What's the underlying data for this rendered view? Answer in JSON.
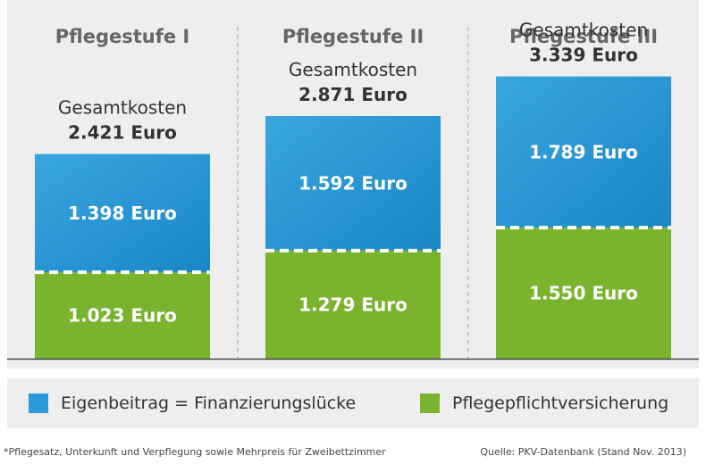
{
  "chart_data": {
    "type": "bar",
    "stacked": true,
    "categories": [
      "Pflegestufe I",
      "Pflegestufe II",
      "Pflegestufe III"
    ],
    "series": [
      {
        "name": "Pflegepflichtversicherung",
        "values": [
          1023,
          1279,
          1550
        ],
        "labels": [
          "1.023 Euro",
          "1.279 Euro",
          "1.550 Euro"
        ],
        "color": "#7ab32e"
      },
      {
        "name": "Eigenbeitrag = Finanzierungslücke",
        "values": [
          1398,
          1592,
          1789
        ],
        "labels": [
          "1.398 Euro",
          "1.592 Euro",
          "1.789 Euro"
        ],
        "color": "#2c9ad8"
      }
    ],
    "totals": [
      2421,
      2871,
      3339
    ],
    "total_caption": "Gesamtkosten",
    "total_labels": [
      "2.421 Euro",
      "2.871 Euro",
      "3.339 Euro"
    ],
    "ylim": [
      0,
      3800
    ],
    "legend_position": "bottom",
    "grid": false
  },
  "legend": {
    "items": [
      {
        "label": "Eigenbeitrag = Finanzierungslücke",
        "color": "#2c9ad8"
      },
      {
        "label": "Pflegepflichtversicherung",
        "color": "#7ab32e"
      }
    ]
  },
  "footnote": "*Pflegesatz, Unterkunft und Verpflegung sowie Mehrpreis für Zweibettzimmer",
  "source": "Quelle: PKV-Datenbank (Stand Nov. 2013)"
}
